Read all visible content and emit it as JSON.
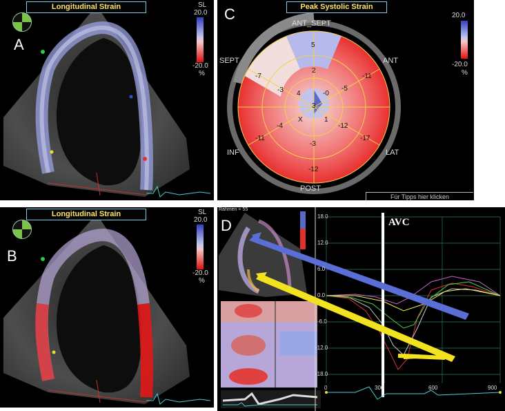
{
  "panel_a": {
    "label": "A",
    "title": "Longitudinal Strain",
    "scale_name": "SL",
    "scale_max": "20.0",
    "scale_min": "-20.0",
    "scale_unit": "%"
  },
  "panel_b": {
    "label": "B",
    "title": "Longitudinal Strain",
    "scale_name": "SL",
    "scale_max": "20.0",
    "scale_min": "-20.0",
    "scale_unit": "%"
  },
  "panel_c": {
    "label": "C",
    "title": "Peak Systolic Strain",
    "scale_max": "20.0",
    "scale_min": "-20.0",
    "scale_unit": "%",
    "walls": {
      "ant_sept": "ANT_SEPT",
      "ant": "ANT",
      "sept": "SEPT",
      "inf": "INF",
      "lat": "LAT",
      "post": "POST"
    },
    "segments": [
      "5",
      "-11",
      "-7",
      "2",
      "-5",
      "-3",
      "4",
      "-0",
      "3",
      "X",
      "1",
      "-4",
      "-12",
      "-11",
      "-3",
      "-17",
      "-12"
    ],
    "hint": "Für Tipps hier klicken"
  },
  "panel_d": {
    "label": "D",
    "header": "Rahmen = 55",
    "avc_label": "AVC",
    "y_ticks": [
      "18.0",
      "12.0",
      "6.0",
      "0.0",
      "-6.0",
      "-12.0",
      "-18.0"
    ],
    "x_ticks": [
      "0",
      "300",
      "600",
      "900"
    ],
    "colors": {
      "blue_arrow": "#5a6ed6",
      "yellow_arrow": "#f2e21f"
    }
  }
}
